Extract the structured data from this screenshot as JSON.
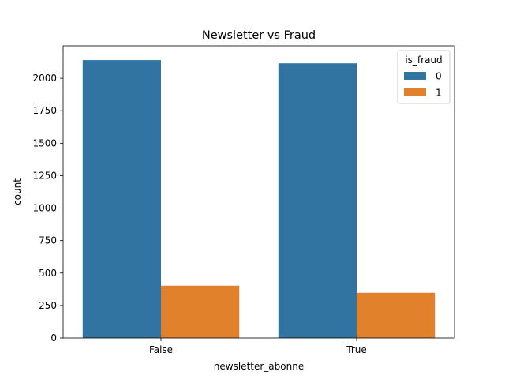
{
  "chart_data": {
    "type": "bar",
    "title": "Newsletter vs Fraud",
    "xlabel": "newsletter_abonne",
    "ylabel": "count",
    "categories": [
      "False",
      "True"
    ],
    "series": [
      {
        "name": "0",
        "values": [
          2140,
          2115
        ],
        "color": "#3274a1"
      },
      {
        "name": "1",
        "values": [
          403,
          348
        ],
        "color": "#e1812c"
      }
    ],
    "ylim": [
      0,
      2250
    ],
    "yticks": [
      0,
      250,
      500,
      750,
      1000,
      1250,
      1500,
      1750,
      2000
    ],
    "legend": {
      "title": "is_fraud",
      "placement": "top-right"
    },
    "grid": false
  }
}
